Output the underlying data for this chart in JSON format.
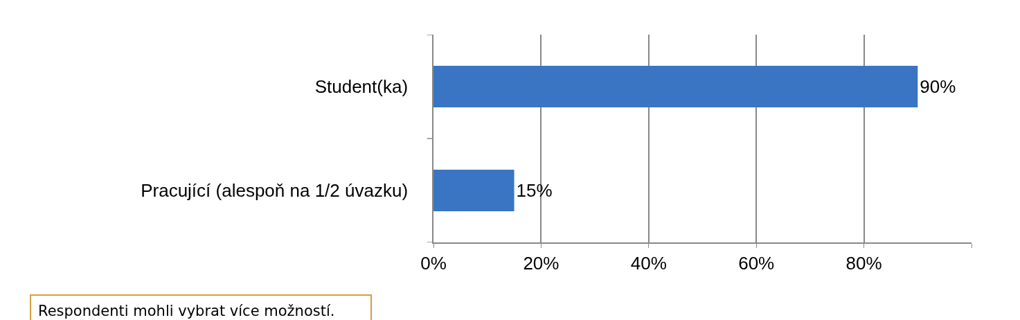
{
  "chart_data": {
    "type": "bar",
    "orientation": "horizontal",
    "categories": [
      "Student(ka)",
      "Pracující (alespoň na 1/2 úvazku)"
    ],
    "values": [
      90,
      15
    ],
    "value_labels": [
      "90%",
      "15%"
    ],
    "color": "#3a75c4",
    "xlim": [
      0,
      100
    ],
    "xticks": [
      {
        "value": 0,
        "label": "0%"
      },
      {
        "value": 20,
        "label": "20%"
      },
      {
        "value": 40,
        "label": "40%"
      },
      {
        "value": 60,
        "label": "60%"
      },
      {
        "value": 80,
        "label": "80%"
      },
      {
        "value": 100,
        "label": null
      }
    ],
    "grid": "x",
    "legend": false,
    "annotations": [
      "Respondenti mohli vybrat více možností."
    ]
  }
}
